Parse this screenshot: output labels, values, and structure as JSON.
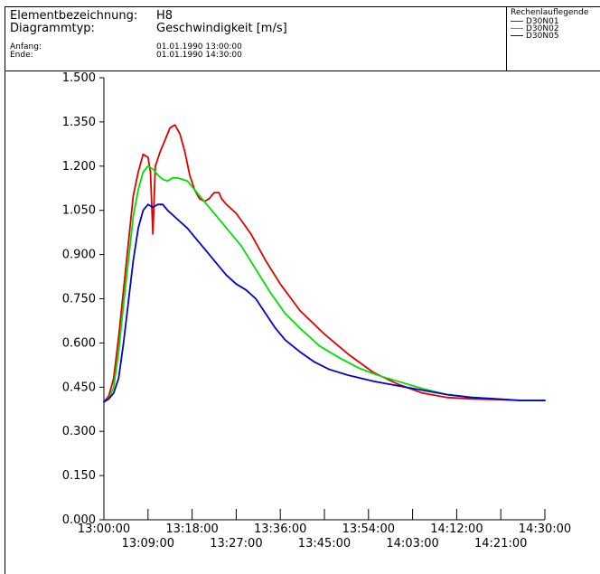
{
  "header": {
    "element_label": "Elementbezeichnung:",
    "element_value": "H8",
    "type_label": "Diagrammtyp:",
    "type_value": "Geschwindigkeit [m/s]",
    "start_label": "Anfang:",
    "start_value": "01.01.1990 13:00:00",
    "end_label": "Ende:",
    "end_value": "01.01.1990 14:30:00"
  },
  "legend": {
    "title": "Rechenlauflegende"
  },
  "colors": {
    "D30N01": "#e00000",
    "D30N02": "#00e000",
    "D30N05": "#0000d0"
  },
  "chart_data": {
    "type": "line",
    "title": "",
    "xlabel": "",
    "ylabel": "",
    "xlim": [
      "13:00:00",
      "14:30:00"
    ],
    "ylim": [
      0.0,
      1.5
    ],
    "y_ticks": [
      "0.000",
      "0.150",
      "0.300",
      "0.450",
      "0.600",
      "0.750",
      "0.900",
      "1.050",
      "1.200",
      "1.350",
      "1.500"
    ],
    "x_ticks_upper": [
      "13:00:00",
      "13:18:00",
      "13:36:00",
      "13:54:00",
      "14:12:00",
      "14:30:00"
    ],
    "x_ticks_lower": [
      "13:09:00",
      "13:27:00",
      "13:45:00",
      "14:03:00",
      "14:21:00"
    ],
    "grid": false,
    "series": [
      {
        "name": "D30N01",
        "points": [
          [
            "13:00:00",
            0.4
          ],
          [
            "13:01:00",
            0.42
          ],
          [
            "13:02:00",
            0.48
          ],
          [
            "13:03:00",
            0.62
          ],
          [
            "13:04:00",
            0.78
          ],
          [
            "13:05:00",
            0.94
          ],
          [
            "13:06:00",
            1.1
          ],
          [
            "13:07:00",
            1.18
          ],
          [
            "13:08:00",
            1.24
          ],
          [
            "13:09:00",
            1.23
          ],
          [
            "13:09:30",
            1.18
          ],
          [
            "13:10:00",
            0.97
          ],
          [
            "13:10:30",
            1.2
          ],
          [
            "13:11:30",
            1.25
          ],
          [
            "13:12:30",
            1.29
          ],
          [
            "13:13:30",
            1.33
          ],
          [
            "13:14:30",
            1.34
          ],
          [
            "13:15:30",
            1.31
          ],
          [
            "13:16:30",
            1.25
          ],
          [
            "13:17:30",
            1.17
          ],
          [
            "13:18:30",
            1.12
          ],
          [
            "13:19:30",
            1.09
          ],
          [
            "13:20:30",
            1.08
          ],
          [
            "13:21:30",
            1.09
          ],
          [
            "13:22:30",
            1.11
          ],
          [
            "13:23:30",
            1.11
          ],
          [
            "13:24:00",
            1.09
          ],
          [
            "13:25:00",
            1.07
          ],
          [
            "13:27:00",
            1.04
          ],
          [
            "13:30:00",
            0.97
          ],
          [
            "13:33:00",
            0.88
          ],
          [
            "13:36:00",
            0.8
          ],
          [
            "13:40:00",
            0.71
          ],
          [
            "13:45:00",
            0.63
          ],
          [
            "13:50:00",
            0.56
          ],
          [
            "13:55:00",
            0.5
          ],
          [
            "14:00:00",
            0.46
          ],
          [
            "14:05:00",
            0.43
          ],
          [
            "14:10:00",
            0.415
          ],
          [
            "14:15:00",
            0.41
          ],
          [
            "14:20:00",
            0.408
          ],
          [
            "14:25:00",
            0.405
          ],
          [
            "14:30:00",
            0.405
          ]
        ]
      },
      {
        "name": "D30N02",
        "points": [
          [
            "13:00:00",
            0.4
          ],
          [
            "13:01:00",
            0.41
          ],
          [
            "13:02:00",
            0.45
          ],
          [
            "13:03:00",
            0.57
          ],
          [
            "13:04:00",
            0.73
          ],
          [
            "13:05:00",
            0.88
          ],
          [
            "13:06:00",
            1.03
          ],
          [
            "13:07:00",
            1.12
          ],
          [
            "13:08:00",
            1.18
          ],
          [
            "13:09:00",
            1.2
          ],
          [
            "13:10:00",
            1.19
          ],
          [
            "13:11:00",
            1.17
          ],
          [
            "13:12:00",
            1.155
          ],
          [
            "13:13:00",
            1.15
          ],
          [
            "13:14:00",
            1.16
          ],
          [
            "13:15:00",
            1.16
          ],
          [
            "13:16:00",
            1.155
          ],
          [
            "13:17:00",
            1.15
          ],
          [
            "13:18:00",
            1.13
          ],
          [
            "13:20:00",
            1.09
          ],
          [
            "13:22:00",
            1.05
          ],
          [
            "13:25:00",
            0.99
          ],
          [
            "13:28:00",
            0.93
          ],
          [
            "13:31:00",
            0.85
          ],
          [
            "13:34:00",
            0.77
          ],
          [
            "13:37:00",
            0.7
          ],
          [
            "13:40:00",
            0.65
          ],
          [
            "13:44:00",
            0.59
          ],
          [
            "13:48:00",
            0.55
          ],
          [
            "13:52:00",
            0.515
          ],
          [
            "13:56:00",
            0.49
          ],
          [
            "14:00:00",
            0.47
          ],
          [
            "14:05:00",
            0.445
          ],
          [
            "14:10:00",
            0.425
          ],
          [
            "14:15:00",
            0.415
          ],
          [
            "14:20:00",
            0.41
          ],
          [
            "14:25:00",
            0.405
          ],
          [
            "14:30:00",
            0.405
          ]
        ]
      },
      {
        "name": "D30N05",
        "points": [
          [
            "13:00:00",
            0.4
          ],
          [
            "13:01:00",
            0.41
          ],
          [
            "13:02:00",
            0.43
          ],
          [
            "13:03:00",
            0.48
          ],
          [
            "13:04:00",
            0.6
          ],
          [
            "13:05:00",
            0.74
          ],
          [
            "13:06:00",
            0.88
          ],
          [
            "13:07:00",
            0.99
          ],
          [
            "13:08:00",
            1.05
          ],
          [
            "13:09:00",
            1.07
          ],
          [
            "13:10:00",
            1.06
          ],
          [
            "13:11:00",
            1.07
          ],
          [
            "13:12:00",
            1.07
          ],
          [
            "13:13:00",
            1.05
          ],
          [
            "13:15:00",
            1.02
          ],
          [
            "13:17:00",
            0.99
          ],
          [
            "13:19:00",
            0.95
          ],
          [
            "13:21:00",
            0.91
          ],
          [
            "13:23:00",
            0.87
          ],
          [
            "13:25:00",
            0.83
          ],
          [
            "13:27:00",
            0.8
          ],
          [
            "13:29:00",
            0.78
          ],
          [
            "13:31:00",
            0.75
          ],
          [
            "13:33:00",
            0.7
          ],
          [
            "13:35:00",
            0.65
          ],
          [
            "13:37:00",
            0.61
          ],
          [
            "13:40:00",
            0.57
          ],
          [
            "13:43:00",
            0.535
          ],
          [
            "13:46:00",
            0.51
          ],
          [
            "13:50:00",
            0.49
          ],
          [
            "13:55:00",
            0.47
          ],
          [
            "14:00:00",
            0.455
          ],
          [
            "14:05:00",
            0.44
          ],
          [
            "14:10:00",
            0.425
          ],
          [
            "14:15:00",
            0.415
          ],
          [
            "14:20:00",
            0.41
          ],
          [
            "14:25:00",
            0.405
          ],
          [
            "14:30:00",
            0.405
          ]
        ]
      }
    ]
  }
}
